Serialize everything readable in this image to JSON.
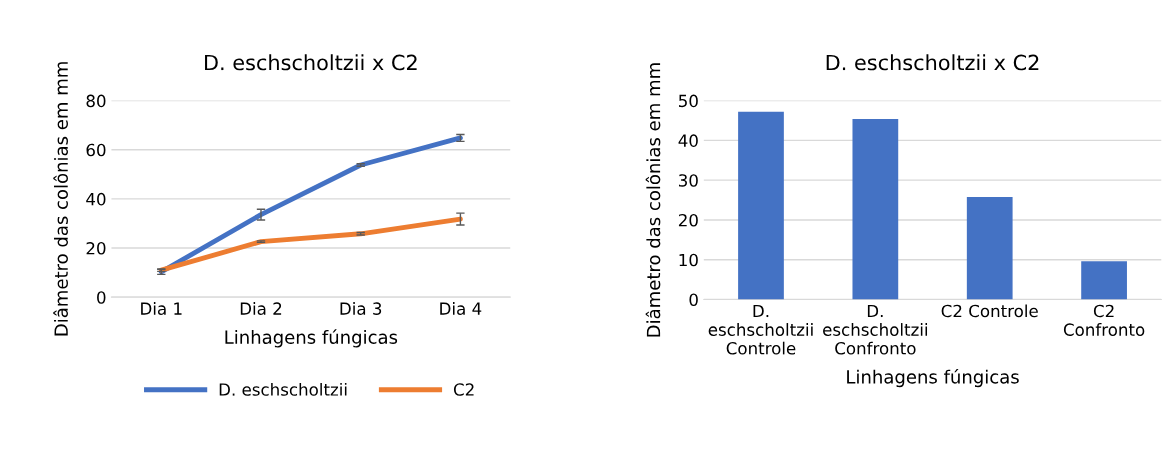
{
  "chart_data": [
    {
      "type": "line",
      "title": "D. eschscholtzii x C2",
      "xlabel": "Linhagens fúngicas",
      "ylabel": "Diâmetro das colônias em mm",
      "categories": [
        "Dia 1",
        "Dia 2",
        "Dia 3",
        "Dia 4"
      ],
      "series": [
        {
          "name": "D. eschscholtzii",
          "color": "#4472c4",
          "values": [
            10.3,
            33.6,
            53.8,
            64.8
          ],
          "errors": [
            1,
            2.2,
            0.5,
            1.4
          ]
        },
        {
          "name": "C2",
          "color": "#ed7d31",
          "values": [
            11,
            22.6,
            25.8,
            31.8
          ],
          "errors": [
            0.5,
            0.3,
            0.5,
            2.4
          ]
        }
      ],
      "ylim": [
        0,
        80
      ],
      "yticks": [
        0,
        20,
        40,
        60,
        80
      ],
      "grid": "y",
      "legend": "bottom",
      "marker": "none",
      "line_style": "solid"
    },
    {
      "type": "bar",
      "title": "D. eschscholtzii x C2",
      "xlabel": "Linhagens fúngicas",
      "ylabel": "Diâmetro das colônias em mm",
      "categories": [
        "D.\neschscholtzii\nControle",
        "D.\neschscholtzii\nConfronto",
        "C2 Controle",
        "C2\nConfronto"
      ],
      "values": [
        47.2,
        45.4,
        25.8,
        9.6
      ],
      "color": "#4472c4",
      "ylim": [
        0,
        50
      ],
      "yticks": [
        0,
        10,
        20,
        30,
        40,
        50
      ],
      "grid": "y"
    }
  ]
}
